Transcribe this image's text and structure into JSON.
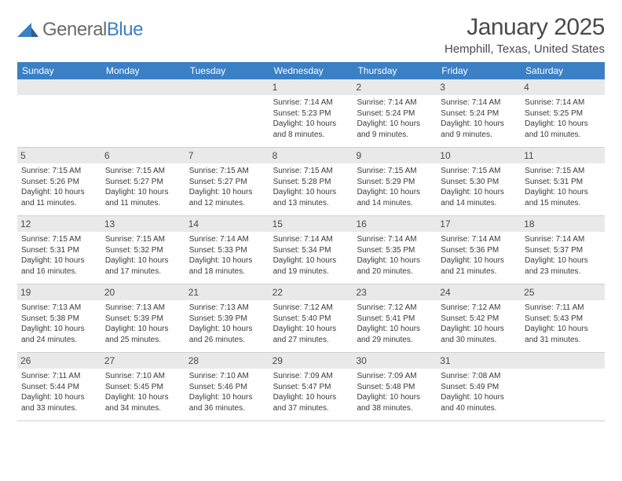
{
  "logo": {
    "text_gray": "General",
    "text_blue": "Blue"
  },
  "title": "January 2025",
  "location": "Hemphill, Texas, United States",
  "colors": {
    "header_bar": "#3b7fc4",
    "day_num_bg": "#e9e9e9",
    "text": "#3a3a3a",
    "rule": "#cfcfcf"
  },
  "days_of_week": [
    "Sunday",
    "Monday",
    "Tuesday",
    "Wednesday",
    "Thursday",
    "Friday",
    "Saturday"
  ],
  "weeks": [
    [
      {
        "n": "",
        "sunrise": "",
        "sunset": "",
        "daylight": ""
      },
      {
        "n": "",
        "sunrise": "",
        "sunset": "",
        "daylight": ""
      },
      {
        "n": "",
        "sunrise": "",
        "sunset": "",
        "daylight": ""
      },
      {
        "n": "1",
        "sunrise": "Sunrise: 7:14 AM",
        "sunset": "Sunset: 5:23 PM",
        "daylight": "Daylight: 10 hours and 8 minutes."
      },
      {
        "n": "2",
        "sunrise": "Sunrise: 7:14 AM",
        "sunset": "Sunset: 5:24 PM",
        "daylight": "Daylight: 10 hours and 9 minutes."
      },
      {
        "n": "3",
        "sunrise": "Sunrise: 7:14 AM",
        "sunset": "Sunset: 5:24 PM",
        "daylight": "Daylight: 10 hours and 9 minutes."
      },
      {
        "n": "4",
        "sunrise": "Sunrise: 7:14 AM",
        "sunset": "Sunset: 5:25 PM",
        "daylight": "Daylight: 10 hours and 10 minutes."
      }
    ],
    [
      {
        "n": "5",
        "sunrise": "Sunrise: 7:15 AM",
        "sunset": "Sunset: 5:26 PM",
        "daylight": "Daylight: 10 hours and 11 minutes."
      },
      {
        "n": "6",
        "sunrise": "Sunrise: 7:15 AM",
        "sunset": "Sunset: 5:27 PM",
        "daylight": "Daylight: 10 hours and 11 minutes."
      },
      {
        "n": "7",
        "sunrise": "Sunrise: 7:15 AM",
        "sunset": "Sunset: 5:27 PM",
        "daylight": "Daylight: 10 hours and 12 minutes."
      },
      {
        "n": "8",
        "sunrise": "Sunrise: 7:15 AM",
        "sunset": "Sunset: 5:28 PM",
        "daylight": "Daylight: 10 hours and 13 minutes."
      },
      {
        "n": "9",
        "sunrise": "Sunrise: 7:15 AM",
        "sunset": "Sunset: 5:29 PM",
        "daylight": "Daylight: 10 hours and 14 minutes."
      },
      {
        "n": "10",
        "sunrise": "Sunrise: 7:15 AM",
        "sunset": "Sunset: 5:30 PM",
        "daylight": "Daylight: 10 hours and 14 minutes."
      },
      {
        "n": "11",
        "sunrise": "Sunrise: 7:15 AM",
        "sunset": "Sunset: 5:31 PM",
        "daylight": "Daylight: 10 hours and 15 minutes."
      }
    ],
    [
      {
        "n": "12",
        "sunrise": "Sunrise: 7:15 AM",
        "sunset": "Sunset: 5:31 PM",
        "daylight": "Daylight: 10 hours and 16 minutes."
      },
      {
        "n": "13",
        "sunrise": "Sunrise: 7:15 AM",
        "sunset": "Sunset: 5:32 PM",
        "daylight": "Daylight: 10 hours and 17 minutes."
      },
      {
        "n": "14",
        "sunrise": "Sunrise: 7:14 AM",
        "sunset": "Sunset: 5:33 PM",
        "daylight": "Daylight: 10 hours and 18 minutes."
      },
      {
        "n": "15",
        "sunrise": "Sunrise: 7:14 AM",
        "sunset": "Sunset: 5:34 PM",
        "daylight": "Daylight: 10 hours and 19 minutes."
      },
      {
        "n": "16",
        "sunrise": "Sunrise: 7:14 AM",
        "sunset": "Sunset: 5:35 PM",
        "daylight": "Daylight: 10 hours and 20 minutes."
      },
      {
        "n": "17",
        "sunrise": "Sunrise: 7:14 AM",
        "sunset": "Sunset: 5:36 PM",
        "daylight": "Daylight: 10 hours and 21 minutes."
      },
      {
        "n": "18",
        "sunrise": "Sunrise: 7:14 AM",
        "sunset": "Sunset: 5:37 PM",
        "daylight": "Daylight: 10 hours and 23 minutes."
      }
    ],
    [
      {
        "n": "19",
        "sunrise": "Sunrise: 7:13 AM",
        "sunset": "Sunset: 5:38 PM",
        "daylight": "Daylight: 10 hours and 24 minutes."
      },
      {
        "n": "20",
        "sunrise": "Sunrise: 7:13 AM",
        "sunset": "Sunset: 5:39 PM",
        "daylight": "Daylight: 10 hours and 25 minutes."
      },
      {
        "n": "21",
        "sunrise": "Sunrise: 7:13 AM",
        "sunset": "Sunset: 5:39 PM",
        "daylight": "Daylight: 10 hours and 26 minutes."
      },
      {
        "n": "22",
        "sunrise": "Sunrise: 7:12 AM",
        "sunset": "Sunset: 5:40 PM",
        "daylight": "Daylight: 10 hours and 27 minutes."
      },
      {
        "n": "23",
        "sunrise": "Sunrise: 7:12 AM",
        "sunset": "Sunset: 5:41 PM",
        "daylight": "Daylight: 10 hours and 29 minutes."
      },
      {
        "n": "24",
        "sunrise": "Sunrise: 7:12 AM",
        "sunset": "Sunset: 5:42 PM",
        "daylight": "Daylight: 10 hours and 30 minutes."
      },
      {
        "n": "25",
        "sunrise": "Sunrise: 7:11 AM",
        "sunset": "Sunset: 5:43 PM",
        "daylight": "Daylight: 10 hours and 31 minutes."
      }
    ],
    [
      {
        "n": "26",
        "sunrise": "Sunrise: 7:11 AM",
        "sunset": "Sunset: 5:44 PM",
        "daylight": "Daylight: 10 hours and 33 minutes."
      },
      {
        "n": "27",
        "sunrise": "Sunrise: 7:10 AM",
        "sunset": "Sunset: 5:45 PM",
        "daylight": "Daylight: 10 hours and 34 minutes."
      },
      {
        "n": "28",
        "sunrise": "Sunrise: 7:10 AM",
        "sunset": "Sunset: 5:46 PM",
        "daylight": "Daylight: 10 hours and 36 minutes."
      },
      {
        "n": "29",
        "sunrise": "Sunrise: 7:09 AM",
        "sunset": "Sunset: 5:47 PM",
        "daylight": "Daylight: 10 hours and 37 minutes."
      },
      {
        "n": "30",
        "sunrise": "Sunrise: 7:09 AM",
        "sunset": "Sunset: 5:48 PM",
        "daylight": "Daylight: 10 hours and 38 minutes."
      },
      {
        "n": "31",
        "sunrise": "Sunrise: 7:08 AM",
        "sunset": "Sunset: 5:49 PM",
        "daylight": "Daylight: 10 hours and 40 minutes."
      },
      {
        "n": "",
        "sunrise": "",
        "sunset": "",
        "daylight": ""
      }
    ]
  ]
}
